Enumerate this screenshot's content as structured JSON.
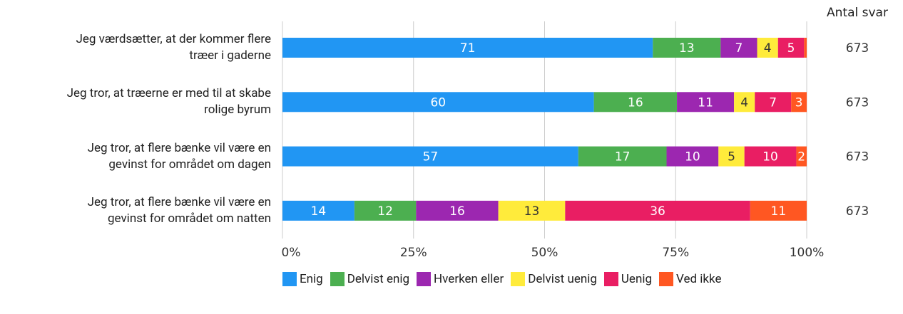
{
  "chart_data": {
    "type": "stacked_bar_horizontal",
    "stack": "percent",
    "categories": [
      "Jeg værdsætter, at der kommer flere\ntræer i gaderne",
      "Jeg tror, at træerne er med til at skabe\nrolige byrum",
      "Jeg tror, at flere bænke vil være en\ngevinst for området om dagen",
      "Jeg tror, at flere bænke vil være en\ngevinst for området om natten"
    ],
    "series": [
      {
        "name": "Enig",
        "color": "#2196f3",
        "label_color": "#ffffff",
        "values": [
          71,
          60,
          57,
          14
        ]
      },
      {
        "name": "Delvist enig",
        "color": "#4caf50",
        "label_color": "#ffffff",
        "values": [
          13,
          16,
          17,
          12
        ]
      },
      {
        "name": "Hverken eller",
        "color": "#9c27b0",
        "label_color": "#ffffff",
        "values": [
          7,
          11,
          10,
          16
        ]
      },
      {
        "name": "Delvist uenig",
        "color": "#ffeb3b",
        "label_color": "#333333",
        "values": [
          4,
          4,
          5,
          13
        ]
      },
      {
        "name": "Uenig",
        "color": "#e91e63",
        "label_color": "#ffffff",
        "values": [
          5,
          7,
          10,
          36
        ]
      },
      {
        "name": "Ved ikke",
        "color": "#ff5722",
        "label_color": "#ffffff",
        "values": [
          0.5,
          3,
          2,
          11
        ],
        "value_labels": [
          null,
          "3",
          "2",
          "11"
        ]
      }
    ],
    "xlim": [
      0,
      100
    ],
    "xticks": [
      {
        "value": 0,
        "label": "0%"
      },
      {
        "value": 25,
        "label": "25%"
      },
      {
        "value": 50,
        "label": "50%"
      },
      {
        "value": 75,
        "label": "75%"
      },
      {
        "value": 100,
        "label": "100%"
      }
    ],
    "grid": true,
    "totals_label": "Antal svar",
    "totals": [
      673,
      673,
      673,
      673
    ]
  }
}
